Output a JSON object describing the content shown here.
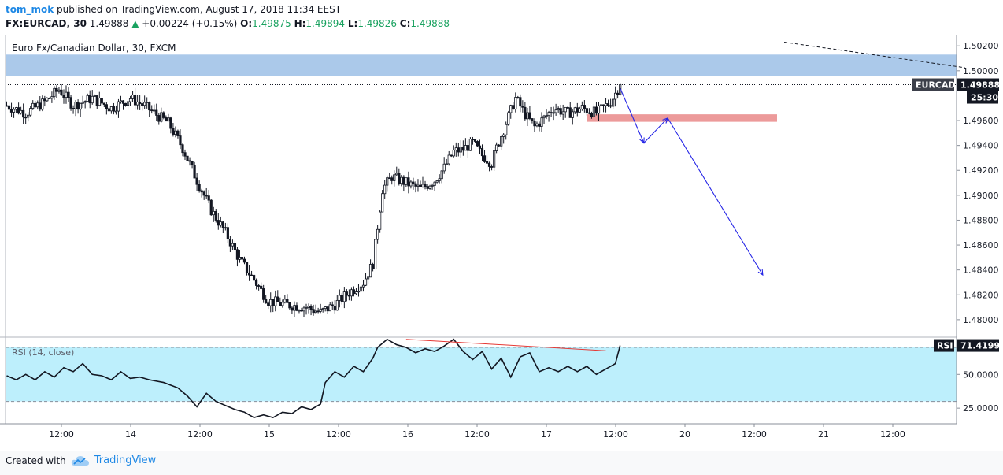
{
  "header": {
    "user": "tom_mok",
    "published": "published on TradingView.com, August 17, 2018 11:34 EEST",
    "symbol": "FX:EURCAD, 30",
    "last": "1.49888",
    "change": "+0.00224 (+0.15%)",
    "o_label": "O:",
    "o_value": "1.49875",
    "h_label": "H:",
    "h_value": "1.49894",
    "l_label": "L:",
    "l_value": "1.49826",
    "c_label": "C:",
    "c_value": "1.49888"
  },
  "footer": {
    "created_with": "Created with",
    "brand": "TradingView"
  },
  "colors": {
    "candle": "#131722",
    "resistance_zone": "#9cbfe6",
    "support_zone": "#ec9a9a",
    "projection": "#2626e6",
    "rsi_band": "#bdeffc",
    "rsi_line": "#131722",
    "divergence": "#e53935"
  },
  "chart_data": [
    {
      "type": "candlestick",
      "title": "Euro Fx/Canadian Dollar, 30, FXCM",
      "symbol_label": "EURCAD",
      "last_value": "1.49888",
      "countdown": "25:30",
      "ylim": [
        1.4786,
        1.5029
      ],
      "y_ticks": [
        "1.50200",
        "1.50000",
        "1.49600",
        "1.49400",
        "1.49200",
        "1.49000",
        "1.48800",
        "1.48600",
        "1.48400",
        "1.48200",
        "1.48000"
      ],
      "x_ticks": [
        "12:00",
        "14",
        "12:00",
        "15",
        "12:00",
        "16",
        "12:00",
        "17",
        "12:00",
        "20",
        "12:00",
        "21",
        "12:00"
      ],
      "close_path": [
        [
          0,
          1.4972
        ],
        [
          8,
          1.4966
        ],
        [
          16,
          1.4975
        ],
        [
          22,
          1.4985
        ],
        [
          28,
          1.4972
        ],
        [
          36,
          1.4978
        ],
        [
          44,
          1.497
        ],
        [
          52,
          1.4978
        ],
        [
          58,
          1.4972
        ],
        [
          62,
          1.4966
        ],
        [
          68,
          1.4958
        ],
        [
          74,
          1.4938
        ],
        [
          80,
          1.4912
        ],
        [
          86,
          1.4888
        ],
        [
          92,
          1.487
        ],
        [
          98,
          1.4848
        ],
        [
          104,
          1.4832
        ],
        [
          110,
          1.4815
        ],
        [
          118,
          1.4812
        ],
        [
          126,
          1.481
        ],
        [
          132,
          1.4806
        ],
        [
          138,
          1.4812
        ],
        [
          144,
          1.4822
        ],
        [
          150,
          1.483
        ],
        [
          154,
          1.4845
        ],
        [
          156,
          1.4875
        ],
        [
          158,
          1.4905
        ],
        [
          162,
          1.4915
        ],
        [
          168,
          1.491
        ],
        [
          174,
          1.4905
        ],
        [
          180,
          1.4912
        ],
        [
          184,
          1.4922
        ],
        [
          188,
          1.4935
        ],
        [
          192,
          1.4937
        ],
        [
          196,
          1.4942
        ],
        [
          200,
          1.4932
        ],
        [
          204,
          1.4926
        ],
        [
          206,
          1.4938
        ],
        [
          210,
          1.4958
        ],
        [
          214,
          1.4978
        ],
        [
          218,
          1.4965
        ],
        [
          222,
          1.4955
        ],
        [
          226,
          1.4962
        ],
        [
          230,
          1.497
        ],
        [
          236,
          1.4966
        ],
        [
          242,
          1.497
        ],
        [
          248,
          1.4966
        ],
        [
          254,
          1.4975
        ],
        [
          258,
          1.49888
        ]
      ],
      "annotations": {
        "resistance_zone": [
          1.49955,
          1.5013
        ],
        "support_zone": [
          1.4959,
          1.4965
        ],
        "projection": [
          [
            258,
            1.4986
          ],
          [
            268,
            1.4942
          ],
          [
            278,
            1.4962
          ],
          [
            318,
            1.4836
          ]
        ],
        "dashed_line": [
          [
            327,
            1.5023
          ],
          [
            403,
            1.50025
          ]
        ]
      }
    },
    {
      "type": "line",
      "title": "RSI (14, close)",
      "last_value": "71.4199",
      "label": "RSI",
      "ylim": [
        14,
        77
      ],
      "y_ticks": [
        "50.0000",
        "25.0000"
      ],
      "bands": [
        30,
        70
      ],
      "values": [
        [
          0,
          49
        ],
        [
          4,
          46
        ],
        [
          8,
          50
        ],
        [
          12,
          46
        ],
        [
          16,
          52
        ],
        [
          20,
          48
        ],
        [
          24,
          55
        ],
        [
          28,
          52
        ],
        [
          32,
          58
        ],
        [
          36,
          50
        ],
        [
          40,
          49
        ],
        [
          44,
          46
        ],
        [
          48,
          52
        ],
        [
          52,
          47
        ],
        [
          56,
          48
        ],
        [
          60,
          46
        ],
        [
          66,
          44
        ],
        [
          72,
          40
        ],
        [
          76,
          34
        ],
        [
          80,
          26
        ],
        [
          84,
          36
        ],
        [
          88,
          30
        ],
        [
          92,
          27
        ],
        [
          96,
          24
        ],
        [
          100,
          22
        ],
        [
          104,
          18
        ],
        [
          108,
          20
        ],
        [
          112,
          18
        ],
        [
          116,
          22
        ],
        [
          120,
          21
        ],
        [
          124,
          26
        ],
        [
          128,
          24
        ],
        [
          132,
          28
        ],
        [
          134,
          44
        ],
        [
          138,
          52
        ],
        [
          142,
          48
        ],
        [
          146,
          56
        ],
        [
          150,
          52
        ],
        [
          154,
          62
        ],
        [
          156,
          70
        ],
        [
          160,
          76
        ],
        [
          164,
          72
        ],
        [
          168,
          70
        ],
        [
          172,
          66
        ],
        [
          176,
          69
        ],
        [
          180,
          67
        ],
        [
          184,
          71
        ],
        [
          188,
          76
        ],
        [
          192,
          67
        ],
        [
          196,
          61
        ],
        [
          200,
          67
        ],
        [
          204,
          54
        ],
        [
          208,
          62
        ],
        [
          212,
          48
        ],
        [
          216,
          63
        ],
        [
          220,
          66
        ],
        [
          224,
          52
        ],
        [
          228,
          55
        ],
        [
          232,
          52
        ],
        [
          236,
          56
        ],
        [
          240,
          52
        ],
        [
          244,
          56
        ],
        [
          248,
          50
        ],
        [
          252,
          54
        ],
        [
          256,
          58
        ],
        [
          258,
          71.4199
        ]
      ],
      "divergence": [
        [
          168,
          76
        ],
        [
          252,
          67.5
        ]
      ]
    }
  ]
}
